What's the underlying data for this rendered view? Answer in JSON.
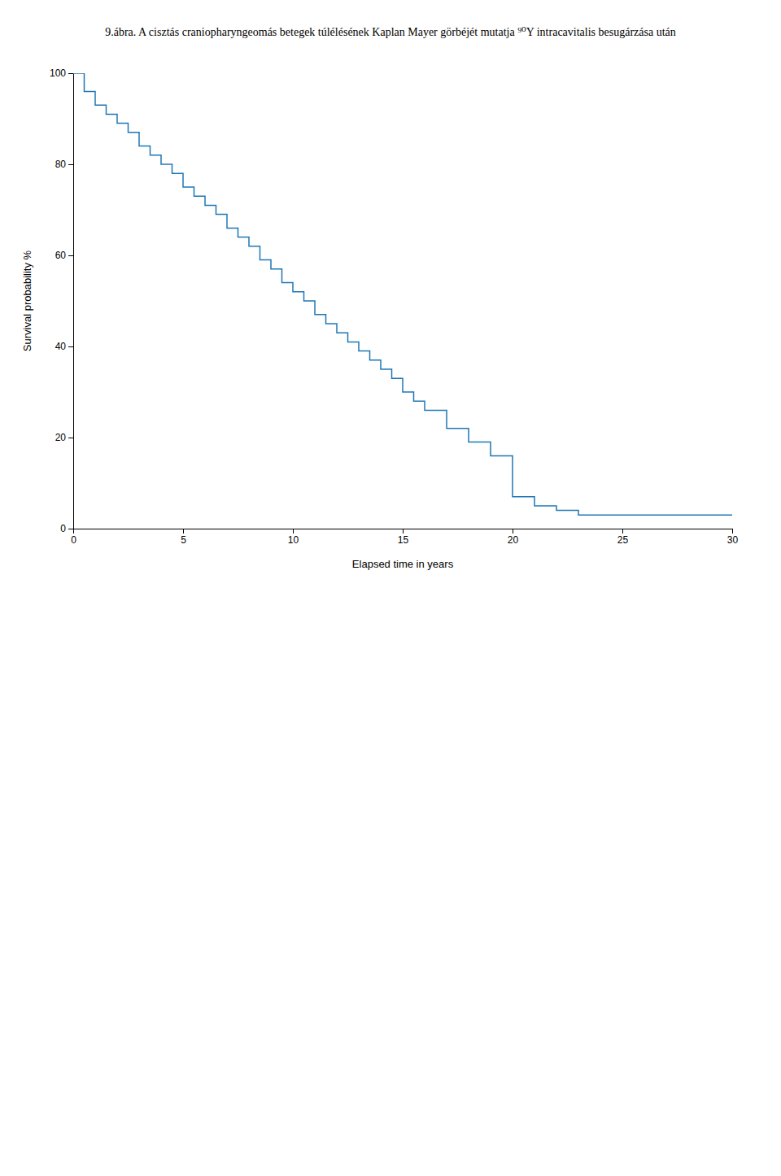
{
  "chart_data": {
    "type": "step",
    "title": "9.ábra. A cisztás craniopharyngeomás betegek túlélésének Kaplan Mayer görbéjét mutatja ⁹⁰Y intracavitalis besugárzása után",
    "x_label": "Elapsed time in years",
    "y_label": "Survival probability %",
    "x": [
      0.0,
      0.5,
      1.0,
      1.5,
      2.0,
      2.5,
      3.0,
      3.5,
      4.0,
      4.5,
      5.0,
      5.5,
      6.0,
      6.5,
      7.0,
      7.5,
      8.0,
      8.5,
      9.0,
      9.5,
      10.0,
      10.5,
      11.0,
      11.5,
      12.0,
      12.5,
      13.0,
      13.5,
      14.0,
      14.5,
      15.0,
      15.5,
      16.0,
      17.0,
      18.0,
      19.0,
      20.0,
      21.0,
      22.0,
      23.0,
      24.0,
      25.0,
      30.0
    ],
    "values": [
      100,
      96,
      93,
      91,
      89,
      87,
      84,
      82,
      80,
      78,
      75,
      73,
      71,
      69,
      66,
      64,
      62,
      59,
      57,
      54,
      52,
      50,
      47,
      45,
      43,
      41,
      39,
      37,
      35,
      33,
      30,
      28,
      26,
      22,
      19,
      16,
      7,
      5,
      4,
      3,
      3,
      3,
      3
    ],
    "xlim": [
      0,
      30
    ],
    "ylim": [
      0,
      100
    ],
    "xticks": [
      0,
      5,
      10,
      15,
      20,
      25,
      30
    ],
    "yticks": [
      0,
      20,
      40,
      60,
      80,
      100
    ]
  }
}
